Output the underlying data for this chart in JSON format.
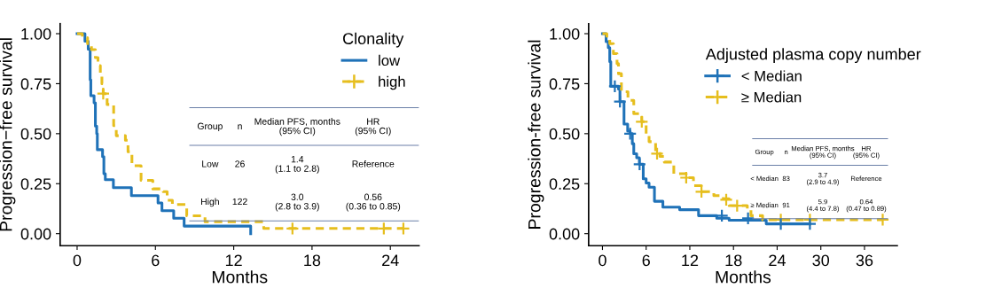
{
  "chart_data": [
    {
      "type": "step",
      "xlabel": "Months",
      "ylabel": "Progression−free survival",
      "legend_title": "Clonality",
      "legend": "top right",
      "grid": false,
      "xlim": [
        -1.3,
        26.2
      ],
      "xticks": [
        0,
        6,
        12,
        18,
        24
      ],
      "ylim": [
        -0.06,
        1.05
      ],
      "yticks": [
        {
          "value": 0,
          "label": "0.00"
        },
        {
          "value": 0.25,
          "label": "0.25"
        },
        {
          "value": 0.5,
          "label": "0.50"
        },
        {
          "value": 0.75,
          "label": "0.75"
        },
        {
          "value": 1,
          "label": "1.00"
        }
      ],
      "series": [
        {
          "name": "low",
          "color": "#1f72b8",
          "line_style": "solid",
          "x": [
            0,
            0.6,
            0.85,
            1.0,
            1.05,
            1.3,
            1.4,
            1.5,
            1.55,
            1.95,
            2.05,
            2.16,
            2.78,
            4.16,
            6.2,
            6.5,
            7.4,
            8.2,
            13.3
          ],
          "values": [
            1.0,
            0.962,
            0.923,
            0.77,
            0.69,
            0.654,
            0.538,
            0.5,
            0.42,
            0.385,
            0.3,
            0.27,
            0.23,
            0.19,
            0.154,
            0.115,
            0.077,
            0.038,
            0.0
          ]
        },
        {
          "name": "high",
          "color": "#e6be1e",
          "line_style": "dashed",
          "x": [
            0,
            0.4,
            0.8,
            1.1,
            1.4,
            1.6,
            1.78,
            1.9,
            2.0,
            2.3,
            2.8,
            3.0,
            3.7,
            3.9,
            4.2,
            4.9,
            5.8,
            6.6,
            6.9,
            7.3,
            8.4,
            9.8,
            14.3,
            25
          ],
          "values": [
            1.0,
            0.98,
            0.95,
            0.92,
            0.88,
            0.84,
            0.8,
            0.75,
            0.7,
            0.646,
            0.54,
            0.49,
            0.467,
            0.41,
            0.34,
            0.267,
            0.224,
            0.21,
            0.167,
            0.146,
            0.089,
            0.06,
            0.026,
            0.026
          ]
        },
        {
          "type": "scatter",
          "color": "#e6be1e",
          "marker": "cross",
          "x": [
            2.0,
            16.5,
            23.5,
            25
          ],
          "values": [
            0.7,
            0.026,
            0.026,
            0.026
          ]
        }
      ],
      "annotations": [
        "Group",
        "n",
        "Median PFS, months\n(95% CI)",
        "HR\n(95% CI)",
        "Low",
        "26",
        "1.4\n(1.1 to 2.8)",
        "Reference",
        "High",
        "122",
        "3.0\n(2.8 to 3.9)",
        "0.56\n(0.36 to 0.85)"
      ]
    },
    {
      "type": "step",
      "xlabel": "Months",
      "ylabel": "Progression-free survival",
      "legend_title": "Adjusted plasma copy number",
      "legend": "top right",
      "grid": false,
      "xlim": [
        -1.9,
        40.5
      ],
      "xticks": [
        0,
        6,
        12,
        18,
        24,
        30,
        36
      ],
      "ylim": [
        -0.06,
        1.05
      ],
      "yticks": [
        {
          "value": 0,
          "label": "0.00"
        },
        {
          "value": 0.25,
          "label": "0.25"
        },
        {
          "value": 0.5,
          "label": "0.50"
        },
        {
          "value": 0.75,
          "label": "0.75"
        },
        {
          "value": 1,
          "label": "1.00"
        }
      ],
      "series": [
        {
          "name": "< Median",
          "color": "#1f72b8",
          "line_style": "solid",
          "x": [
            0,
            0.5,
            0.8,
            1.0,
            1.14,
            2.2,
            2.4,
            2.96,
            3.46,
            3.8,
            4.1,
            4.3,
            4.7,
            5.07,
            5.6,
            6.0,
            6.4,
            7.14,
            8.3,
            10.6,
            13.2,
            15.7,
            17.4,
            22.5,
            28.5
          ],
          "values": [
            1.0,
            0.96,
            0.93,
            0.86,
            0.737,
            0.723,
            0.66,
            0.548,
            0.513,
            0.5,
            0.45,
            0.4,
            0.38,
            0.347,
            0.274,
            0.253,
            0.232,
            0.162,
            0.133,
            0.12,
            0.09,
            0.077,
            0.067,
            0.049,
            0.049
          ]
        },
        {
          "type": "scatter",
          "color": "#1f72b8",
          "marker": "cross",
          "x": [
            1.7,
            2.4,
            3.8,
            5.1,
            16.4,
            20,
            24.5,
            28.5
          ],
          "values": [
            0.737,
            0.66,
            0.5,
            0.347,
            0.09,
            0.077,
            0.049,
            0.049
          ]
        },
        {
          "name": "≥ Median",
          "color": "#e6be1e",
          "line_style": "dashed",
          "x": [
            0,
            0.6,
            1.0,
            1.5,
            2.0,
            2.2,
            2.6,
            3.5,
            4.3,
            5.4,
            6.0,
            6.4,
            7.3,
            7.9,
            8.5,
            9.8,
            11.5,
            12.5,
            13.6,
            15.3,
            16.6,
            17.4,
            19.9,
            20.4,
            22,
            38.5
          ],
          "values": [
            1.0,
            0.97,
            0.95,
            0.9,
            0.85,
            0.8,
            0.71,
            0.667,
            0.6,
            0.56,
            0.5,
            0.46,
            0.41,
            0.386,
            0.358,
            0.3,
            0.28,
            0.24,
            0.21,
            0.19,
            0.175,
            0.14,
            0.126,
            0.09,
            0.07,
            0.07
          ]
        },
        {
          "type": "scatter",
          "color": "#e6be1e",
          "marker": "cross",
          "x": [
            5.4,
            7.5,
            11.5,
            13.6,
            17,
            18.5,
            24.5,
            28.5,
            38.5
          ],
          "values": [
            0.56,
            0.4,
            0.28,
            0.21,
            0.17,
            0.14,
            0.07,
            0.07,
            0.07
          ]
        }
      ],
      "annotations": [
        "Group",
        "n",
        "Median PFS, months\n(95% CI)",
        "HR\n(95% CI)",
        "< Median",
        "83",
        "3.7\n(2.9 to 4.9)",
        "Reference",
        "≥ Median",
        "91",
        "5.9\n(4.4 to 7.8)",
        "0.64\n(0.47 to 0.89)"
      ]
    }
  ]
}
